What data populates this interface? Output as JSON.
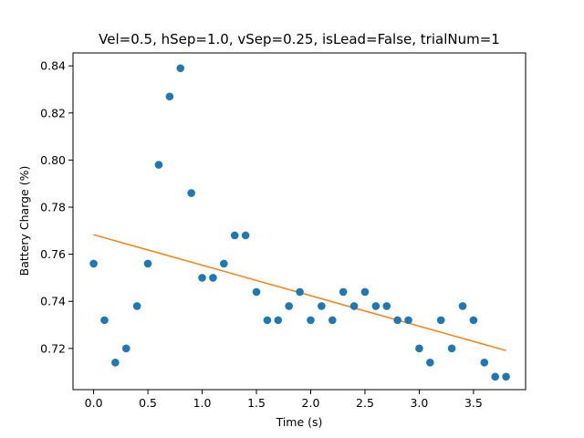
{
  "chart_data": {
    "type": "scatter",
    "title": "Vel=0.5, hSep=1.0, vSep=0.25, isLead=False, trialNum=1",
    "xlabel": "Time (s)",
    "ylabel": "Battery Charge (%)",
    "xlim": [
      -0.19,
      3.98
    ],
    "ylim": [
      0.7025,
      0.8455
    ],
    "xticks": [
      0.0,
      0.5,
      1.0,
      1.5,
      2.0,
      2.5,
      3.0,
      3.5
    ],
    "xtick_labels": [
      "0.0",
      "0.5",
      "1.0",
      "1.5",
      "2.0",
      "2.5",
      "3.0",
      "3.5"
    ],
    "yticks": [
      0.72,
      0.74,
      0.76,
      0.78,
      0.8,
      0.82,
      0.84
    ],
    "ytick_labels": [
      "0.72",
      "0.74",
      "0.76",
      "0.78",
      "0.80",
      "0.82",
      "0.84"
    ],
    "grid": false,
    "series": [
      {
        "kind": "scatter",
        "color": "#1f77b4",
        "x": [
          0.0,
          0.1,
          0.2,
          0.3,
          0.4,
          0.5,
          0.6,
          0.7,
          0.8,
          0.9,
          1.0,
          1.1,
          1.2,
          1.3,
          1.4,
          1.5,
          1.6,
          1.7,
          1.8,
          1.9,
          2.0,
          2.1,
          2.2,
          2.3,
          2.4,
          2.5,
          2.6,
          2.7,
          2.8,
          2.9,
          3.0,
          3.1,
          3.2,
          3.3,
          3.4,
          3.5,
          3.6,
          3.7,
          3.8
        ],
        "y": [
          0.756,
          0.732,
          0.714,
          0.72,
          0.738,
          0.756,
          0.798,
          0.827,
          0.839,
          0.786,
          0.75,
          0.75,
          0.756,
          0.768,
          0.768,
          0.744,
          0.732,
          0.732,
          0.738,
          0.744,
          0.732,
          0.738,
          0.732,
          0.744,
          0.738,
          0.744,
          0.738,
          0.738,
          0.732,
          0.732,
          0.72,
          0.714,
          0.732,
          0.72,
          0.738,
          0.732,
          0.714,
          0.708,
          0.708
        ]
      },
      {
        "kind": "line",
        "color": "#ff7f0e",
        "x": [
          0.0,
          3.8
        ],
        "y": [
          0.7683,
          0.7191
        ]
      }
    ]
  }
}
